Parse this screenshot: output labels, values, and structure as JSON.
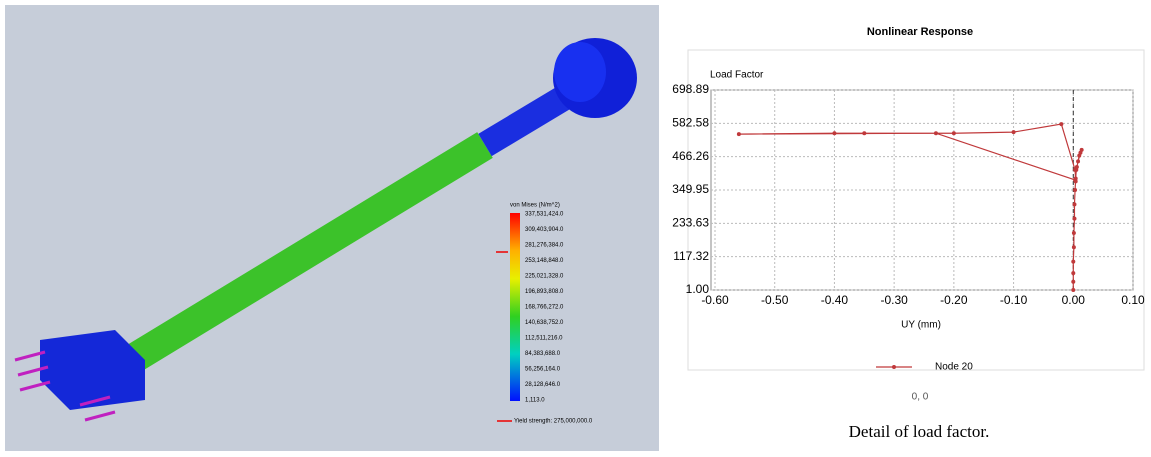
{
  "simulation": {
    "legend": {
      "title": "von Mises (N/m^2)",
      "labels": [
        "337,531,424.0",
        "309,403,904.0",
        "281,276,384.0",
        "253,148,848.0",
        "225,021,328.0",
        "196,893,808.0",
        "168,766,272.0",
        "140,638,752.0",
        "112,511,216.0",
        "84,383,688.0",
        "56,256,164.0",
        "28,128,646.0",
        "1,113.0"
      ],
      "yield": "Yield strength: 275,000,000.0"
    }
  },
  "chart_data": {
    "type": "line",
    "title": "Nonlinear Response",
    "ylabel": "Load Factor",
    "xlabel": "UY (mm)",
    "xlim": [
      -0.6,
      0.1
    ],
    "ylim": [
      1,
      698.89
    ],
    "xticks": [
      {
        "value": -0.6,
        "label": "-0.60"
      },
      {
        "value": -0.5,
        "label": "-0.50"
      },
      {
        "value": -0.4,
        "label": "-0.40"
      },
      {
        "value": -0.3,
        "label": "-0.30"
      },
      {
        "value": -0.2,
        "label": "-0.20"
      },
      {
        "value": -0.1,
        "label": "-0.10"
      },
      {
        "value": 0,
        "label": "0.00"
      },
      {
        "value": 0.1,
        "label": "0.10"
      }
    ],
    "yticks": [
      {
        "value": 1,
        "label": "1.00"
      },
      117.32,
      233.63,
      349.95,
      466.26,
      582.58,
      698.89
    ],
    "grid": true,
    "x": [
      0,
      0,
      0,
      0,
      0.001,
      0.001,
      0.002,
      0.002,
      0.003,
      0.004,
      0.005,
      0.008,
      0.012,
      0.014,
      0.01,
      0.006,
      0.003,
      -0.23,
      -0.56,
      -0.4,
      -0.35,
      -0.2,
      -0.1,
      -0.02,
      0.003,
      0.004
    ],
    "series": [
      {
        "name": "Node 20",
        "color": "#c0393b",
        "values": [
          1,
          30,
          60,
          100,
          150,
          200,
          250,
          300,
          350,
          390,
          420,
          450,
          480,
          490,
          470,
          430,
          385,
          548,
          545,
          548,
          548,
          548,
          552,
          580,
          420,
          380
        ]
      }
    ],
    "note": "0, 0"
  },
  "caption": "Detail of load factor."
}
